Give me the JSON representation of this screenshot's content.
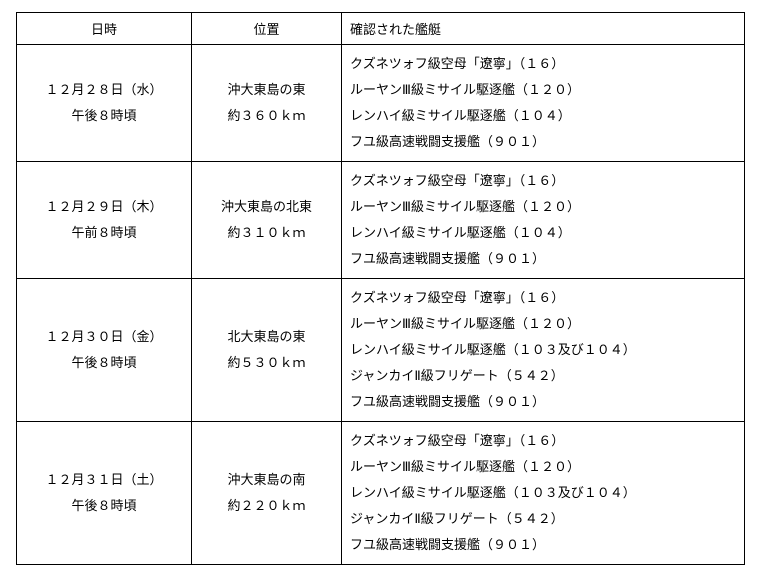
{
  "table": {
    "headers": {
      "datetime": "日時",
      "location": "位置",
      "ships": "確認された艦艇"
    },
    "rows": [
      {
        "date_line1": "１２月２８日（水）",
        "date_line2": "午後８時頃",
        "loc_line1": "沖大東島の東",
        "loc_line2": "約３６０ｋｍ",
        "ships": [
          "クズネツォフ級空母「遼寧」（１６）",
          "ルーヤンⅢ級ミサイル駆逐艦（１２０）",
          "レンハイ級ミサイル駆逐艦（１０４）",
          "フユ級高速戦闘支援艦（９０１）"
        ]
      },
      {
        "date_line1": "１２月２９日（木）",
        "date_line2": "午前８時頃",
        "loc_line1": "沖大東島の北東",
        "loc_line2": "約３１０ｋｍ",
        "ships": [
          "クズネツォフ級空母「遼寧」（１６）",
          "ルーヤンⅢ級ミサイル駆逐艦（１２０）",
          "レンハイ級ミサイル駆逐艦（１０４）",
          "フユ級高速戦闘支援艦（９０１）"
        ]
      },
      {
        "date_line1": "１２月３０日（金）",
        "date_line2": "午後８時頃",
        "loc_line1": "北大東島の東",
        "loc_line2": "約５３０ｋｍ",
        "ships": [
          "クズネツォフ級空母「遼寧」（１６）",
          "ルーヤンⅢ級ミサイル駆逐艦（１２０）",
          "レンハイ級ミサイル駆逐艦（１０３及び１０４）",
          "ジャンカイⅡ級フリゲート（５４２）",
          "フユ級高速戦闘支援艦（９０１）"
        ]
      },
      {
        "date_line1": "１２月３１日（土）",
        "date_line2": "午後８時頃",
        "loc_line1": "沖大東島の南",
        "loc_line2": "約２２０ｋｍ",
        "ships": [
          "クズネツォフ級空母「遼寧」（１６）",
          "ルーヤンⅢ級ミサイル駆逐艦（１２０）",
          "レンハイ級ミサイル駆逐艦（１０３及び１０４）",
          "ジャンカイⅡ級フリゲート（５４２）",
          "フユ級高速戦闘支援艦（９０１）"
        ]
      }
    ]
  }
}
